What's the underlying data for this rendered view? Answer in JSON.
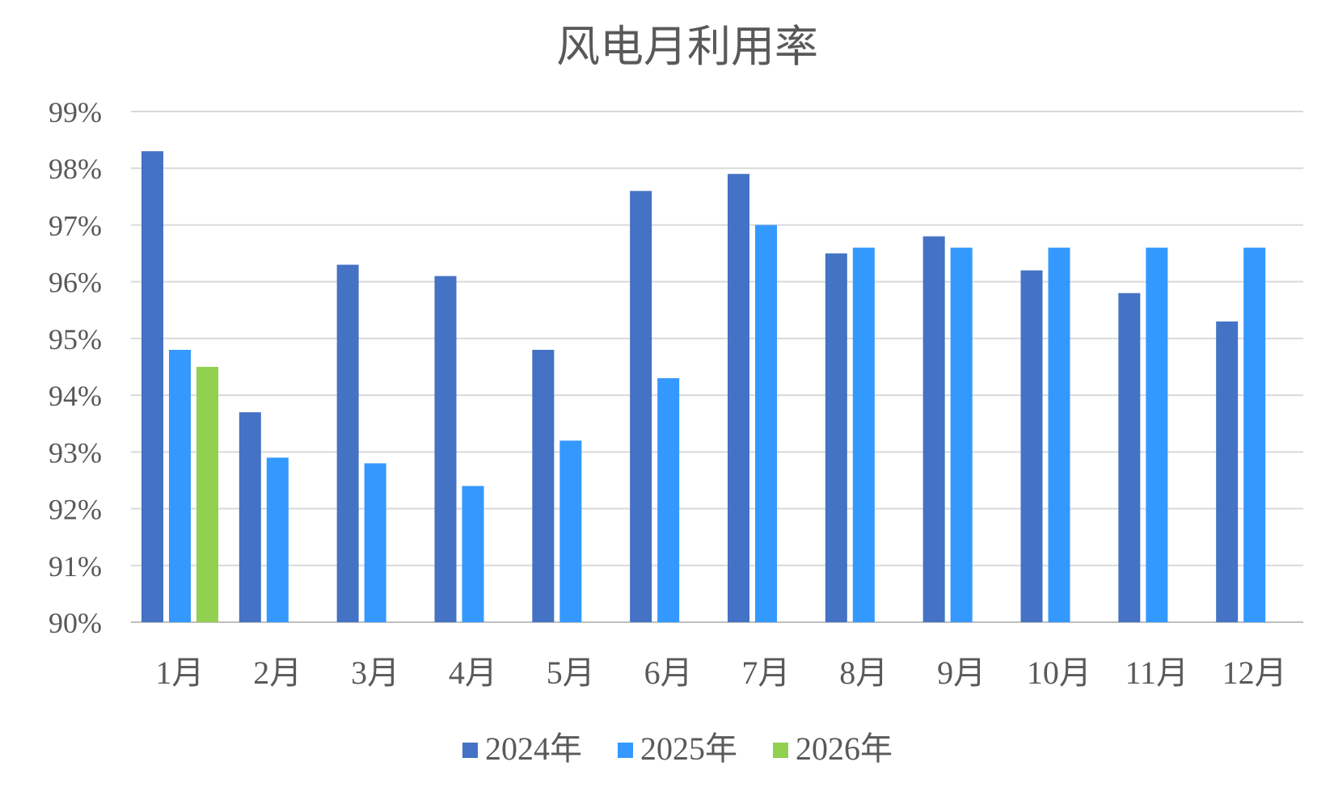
{
  "chart_data": {
    "type": "bar",
    "title": "风电月利用率",
    "xlabel": "",
    "ylabel": "",
    "ylim": [
      90,
      99
    ],
    "yticks": [
      "90%",
      "91%",
      "92%",
      "93%",
      "94%",
      "95%",
      "96%",
      "97%",
      "98%",
      "99%"
    ],
    "categories": [
      "1月",
      "2月",
      "3月",
      "4月",
      "5月",
      "6月",
      "7月",
      "8月",
      "9月",
      "10月",
      "11月",
      "12月"
    ],
    "series": [
      {
        "name": "2024年",
        "color": "#4472C4",
        "values": [
          98.3,
          93.7,
          96.3,
          96.1,
          94.8,
          97.6,
          97.9,
          96.5,
          96.8,
          96.2,
          95.8,
          95.3
        ]
      },
      {
        "name": "2025年",
        "color": "#3399FF",
        "values": [
          94.8,
          92.9,
          92.8,
          92.4,
          93.2,
          94.3,
          97.0,
          96.6,
          96.6,
          96.6,
          96.6,
          96.6
        ]
      },
      {
        "name": "2026年",
        "color": "#92D050",
        "values": [
          94.5,
          null,
          null,
          null,
          null,
          null,
          null,
          null,
          null,
          null,
          null,
          null
        ]
      }
    ],
    "grid": true,
    "legend_position": "bottom"
  }
}
